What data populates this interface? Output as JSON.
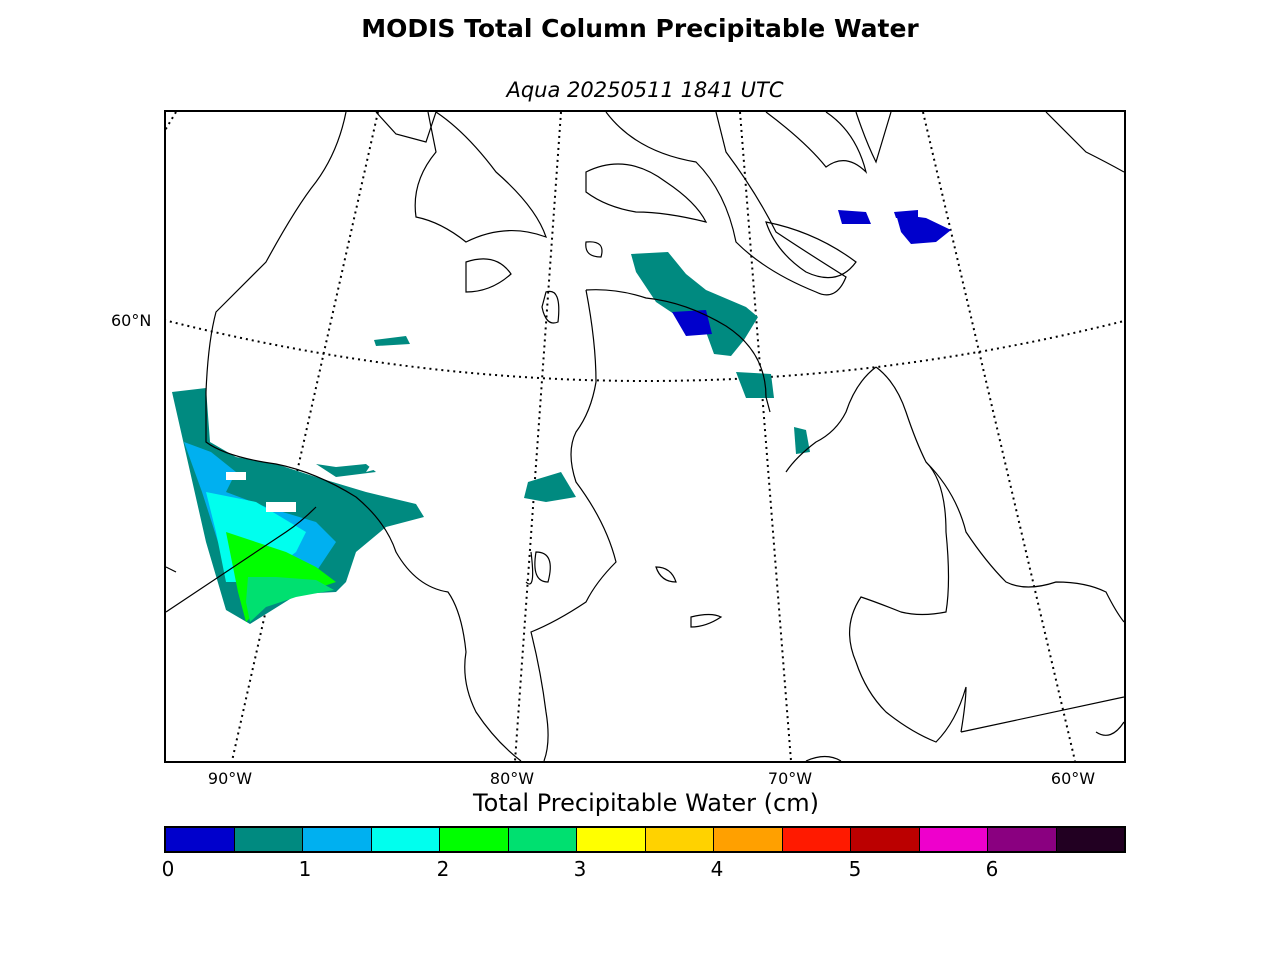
{
  "title": "MODIS Total Column Precipitable Water",
  "subtitle": "Aqua 20250511 1841 UTC",
  "map": {
    "lat_labels": [
      "60°N"
    ],
    "lon_labels": [
      "90°W",
      "80°W",
      "70°W",
      "60°W"
    ],
    "graticule_style": "dotted",
    "coastline_color": "#000000"
  },
  "colorbar": {
    "title": "Total Precipitable Water (cm)",
    "tick_labels": [
      "0",
      "1",
      "2",
      "3",
      "4",
      "5",
      "6"
    ],
    "colors": [
      "#0000cc",
      "#008a80",
      "#00b0f0",
      "#00ffee",
      "#00ff00",
      "#00e070",
      "#ffff00",
      "#ffd200",
      "#ffa000",
      "#ff1a00",
      "#bb0000",
      "#ee00cc",
      "#8a0080",
      "#220022"
    ]
  }
}
